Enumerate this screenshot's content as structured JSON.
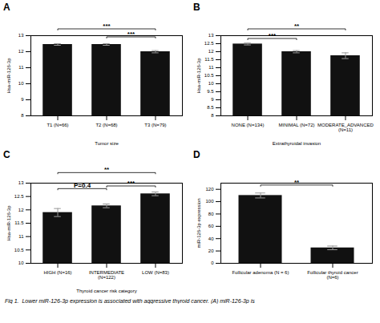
{
  "chart_data": [
    {
      "type": "bar",
      "title": "A",
      "categories": [
        "T1 (N=66)",
        "T2 (N=68)",
        "T3 (N=79)"
      ],
      "values": [
        12.45,
        12.45,
        12.0
      ],
      "errors": [
        0.05,
        0.05,
        0.07
      ],
      "xlabel": "Tumor size",
      "ylabel": "Hsa-miR-126-3p",
      "ylim": [
        8,
        13
      ],
      "yticks": [
        8,
        9,
        10,
        11,
        12,
        13
      ],
      "color": "#111111",
      "grid": false,
      "annotations": [
        {
          "x1": "T1 (N=66)",
          "x2": "T3 (N=79)",
          "y": 13.35,
          "label": "***"
        },
        {
          "x1": "T2 (N=68)",
          "x2": "T3 (N=79)",
          "y": 12.85,
          "label": "***"
        }
      ]
    },
    {
      "type": "bar",
      "title": "B",
      "categories": [
        "NONE (N=134)",
        "MINIMAL (N=72)",
        "MODERATE_ADVANCED\n(N=11)"
      ],
      "values": [
        12.48,
        12.0,
        11.75
      ],
      "errors": [
        0.06,
        0.07,
        0.18
      ],
      "xlabel": "Extrathyroidal invasion",
      "ylabel": "Hsa-miR-126-3p",
      "ylim": [
        8,
        13
      ],
      "yticks": [
        8,
        8.5,
        9,
        9.5,
        10,
        10.5,
        11,
        11.5,
        12,
        12.5,
        13
      ],
      "color": "#111111",
      "grid": false,
      "annotations": [
        {
          "x1": "NONE (N=134)",
          "x2": "MINIMAL (N=72)",
          "y": 12.75,
          "label": "***"
        },
        {
          "x1": "NONE (N=134)",
          "x2": "MODERATE_ADVANCED\n(N=11)",
          "y": 13.35,
          "label": "**"
        }
      ]
    },
    {
      "type": "bar",
      "title": "C",
      "categories": [
        "HIGH (N=16)",
        "INTERMEDIATE\n(N=122)",
        "LOW (N=83)"
      ],
      "values": [
        11.9,
        12.15,
        12.6
      ],
      "errors": [
        0.15,
        0.07,
        0.07
      ],
      "xlabel": "Thyroid cancer risk category",
      "ylabel": "Hsa-miR-126-3p",
      "ylim": [
        10,
        13
      ],
      "yticks": [
        10,
        10.5,
        11,
        11.5,
        12,
        12.5,
        13
      ],
      "color": "#111111",
      "grid": false,
      "annotations": [
        {
          "x1": "HIGH (N=16)",
          "x2": "INTERMEDIATE\n(N=122)",
          "y": 12.75,
          "label": "P=0.4"
        },
        {
          "x1": "INTERMEDIATE\n(N=122)",
          "x2": "LOW (N=83)",
          "y": 12.85,
          "label": "***"
        },
        {
          "x1": "HIGH (N=16)",
          "x2": "LOW (N=83)",
          "y": 13.35,
          "label": "**"
        }
      ]
    },
    {
      "type": "bar",
      "title": "D",
      "categories": [
        "Follicular adenoma (N = 6)",
        "Follicular thyroid cancer (N=6)"
      ],
      "values": [
        110,
        25
      ],
      "errors": [
        4,
        3
      ],
      "ylabel": "miR-126-3p expression",
      "ylim": [
        0,
        130
      ],
      "yticks": [
        0,
        20,
        40,
        60,
        80,
        100,
        120
      ],
      "color": "#111111",
      "grid": false,
      "annotations": [
        {
          "x1": "Follicular adenoma (N = 6)",
          "x2": "Follicular thyroid cancer (N=6)",
          "y": 125,
          "label": "**"
        }
      ]
    }
  ],
  "caption": "Fig 1.  Lower miR-126-3p expression is associated with aggressive thyroid cancer. (A) miR-126-3p is"
}
